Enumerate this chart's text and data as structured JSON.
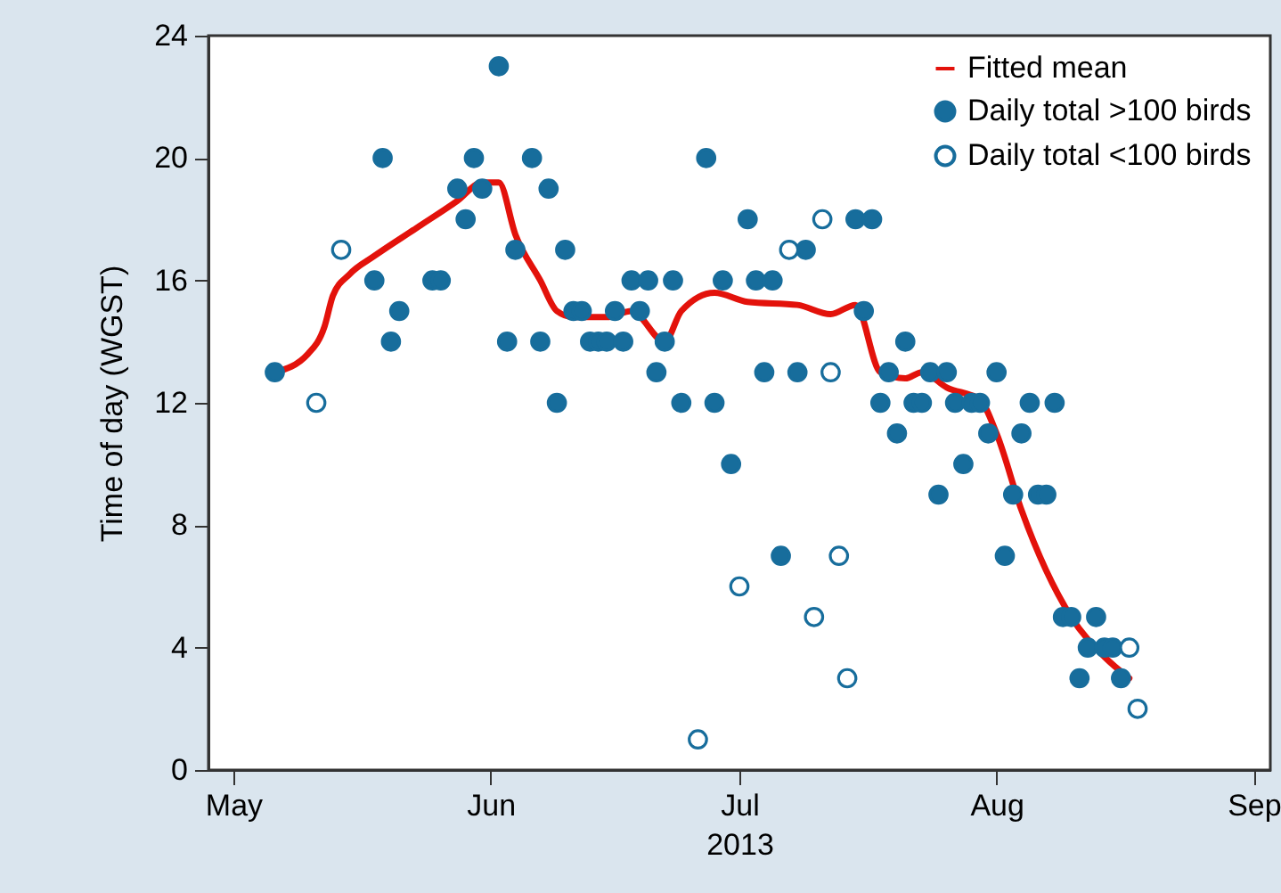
{
  "chart_data": {
    "type": "scatter",
    "xlabel": "2013",
    "ylabel": "Time of day (WGST)",
    "xlim": [
      "2013-04-28",
      "2013-09-03"
    ],
    "xticks": [
      {
        "value": "2013-05-01",
        "label": "May"
      },
      {
        "value": "2013-06-01",
        "label": "Jun"
      },
      {
        "value": "2013-07-01",
        "label": "Jul"
      },
      {
        "value": "2013-08-01",
        "label": "Aug"
      },
      {
        "value": "2013-09-01",
        "label": "Sep"
      }
    ],
    "ylim": [
      0,
      24
    ],
    "yticks": [
      0,
      4,
      8,
      12,
      16,
      20,
      24
    ],
    "grid": false,
    "legend": "top right",
    "series": [
      {
        "name": "Fitted mean",
        "type": "line",
        "color": "#e3120b",
        "line_style": "solid",
        "x": [
          "2013-05-06",
          "2013-05-10",
          "2013-05-12",
          "2013-05-13",
          "2013-05-15",
          "2013-05-18",
          "2013-05-23",
          "2013-05-28",
          "2013-05-31",
          "2013-06-02",
          "2013-06-04",
          "2013-06-07",
          "2013-06-09",
          "2013-06-11",
          "2013-06-15",
          "2013-06-18",
          "2013-06-22",
          "2013-06-24",
          "2013-06-28",
          "2013-07-02",
          "2013-07-08",
          "2013-07-12",
          "2013-07-15",
          "2013-07-18",
          "2013-07-21",
          "2013-07-23",
          "2013-07-26",
          "2013-07-30",
          "2013-08-01",
          "2013-08-04",
          "2013-08-10",
          "2013-08-14",
          "2013-08-17"
        ],
        "values": [
          13,
          13.6,
          14.5,
          15.5,
          16.2,
          16.8,
          17.7,
          18.6,
          19.2,
          19.2,
          17.5,
          16,
          15,
          14.8,
          14.8,
          15,
          14,
          15,
          15.6,
          15.3,
          15.2,
          14.9,
          15.2,
          13,
          12.8,
          13,
          12.5,
          12.1,
          11,
          8.5,
          5,
          3.7,
          3
        ]
      },
      {
        "name": "Daily total >100 birds",
        "type": "scatter",
        "marker": "circle",
        "color": "#176d9c",
        "x": [
          "2013-05-06",
          "2013-05-18",
          "2013-05-19",
          "2013-05-20",
          "2013-05-21",
          "2013-05-25",
          "2013-05-26",
          "2013-05-28",
          "2013-05-29",
          "2013-05-30",
          "2013-05-31",
          "2013-06-02",
          "2013-06-03",
          "2013-06-04",
          "2013-06-06",
          "2013-06-07",
          "2013-06-08",
          "2013-06-09",
          "2013-06-10",
          "2013-06-11",
          "2013-06-12",
          "2013-06-13",
          "2013-06-14",
          "2013-06-15",
          "2013-06-16",
          "2013-06-17",
          "2013-06-18",
          "2013-06-19",
          "2013-06-20",
          "2013-06-21",
          "2013-06-22",
          "2013-06-23",
          "2013-06-24",
          "2013-06-27",
          "2013-06-28",
          "2013-06-29",
          "2013-06-30",
          "2013-07-02",
          "2013-07-03",
          "2013-07-04",
          "2013-07-05",
          "2013-07-06",
          "2013-07-08",
          "2013-07-09",
          "2013-07-15",
          "2013-07-16",
          "2013-07-17",
          "2013-07-18",
          "2013-07-19",
          "2013-07-20",
          "2013-07-21",
          "2013-07-22",
          "2013-07-23",
          "2013-07-24",
          "2013-07-25",
          "2013-07-26",
          "2013-07-27",
          "2013-07-28",
          "2013-07-29",
          "2013-07-30",
          "2013-07-31",
          "2013-08-01",
          "2013-08-02",
          "2013-08-03",
          "2013-08-04",
          "2013-08-05",
          "2013-08-06",
          "2013-08-07",
          "2013-08-08",
          "2013-08-09",
          "2013-08-10",
          "2013-08-11",
          "2013-08-12",
          "2013-08-13",
          "2013-08-14",
          "2013-08-15",
          "2013-08-16"
        ],
        "values": [
          13,
          16,
          20,
          14,
          15,
          16,
          16,
          19,
          18,
          20,
          19,
          23,
          14,
          17,
          20,
          14,
          19,
          12,
          17,
          15,
          15,
          14,
          14,
          14,
          15,
          14,
          16,
          15,
          16,
          13,
          14,
          16,
          12,
          20,
          12,
          16,
          10,
          18,
          16,
          13,
          16,
          7,
          13,
          17,
          18,
          15,
          18,
          12,
          13,
          11,
          14,
          12,
          12,
          13,
          9,
          13,
          12,
          10,
          12,
          12,
          11,
          13,
          7,
          9,
          11,
          12,
          9,
          9,
          12,
          5,
          5,
          3,
          4,
          5,
          4,
          4,
          3
        ]
      },
      {
        "name": "Daily total <100 birds",
        "type": "scatter",
        "marker": "circle",
        "color": "#176d9c",
        "x": [
          "2013-05-11",
          "2013-05-14",
          "2013-06-26",
          "2013-07-01",
          "2013-07-07",
          "2013-07-10",
          "2013-07-11",
          "2013-07-12",
          "2013-07-13",
          "2013-07-14",
          "2013-08-17",
          "2013-08-18"
        ],
        "values": [
          12,
          17,
          1,
          6,
          17,
          5,
          18,
          13,
          7,
          3,
          4,
          2
        ]
      }
    ]
  }
}
